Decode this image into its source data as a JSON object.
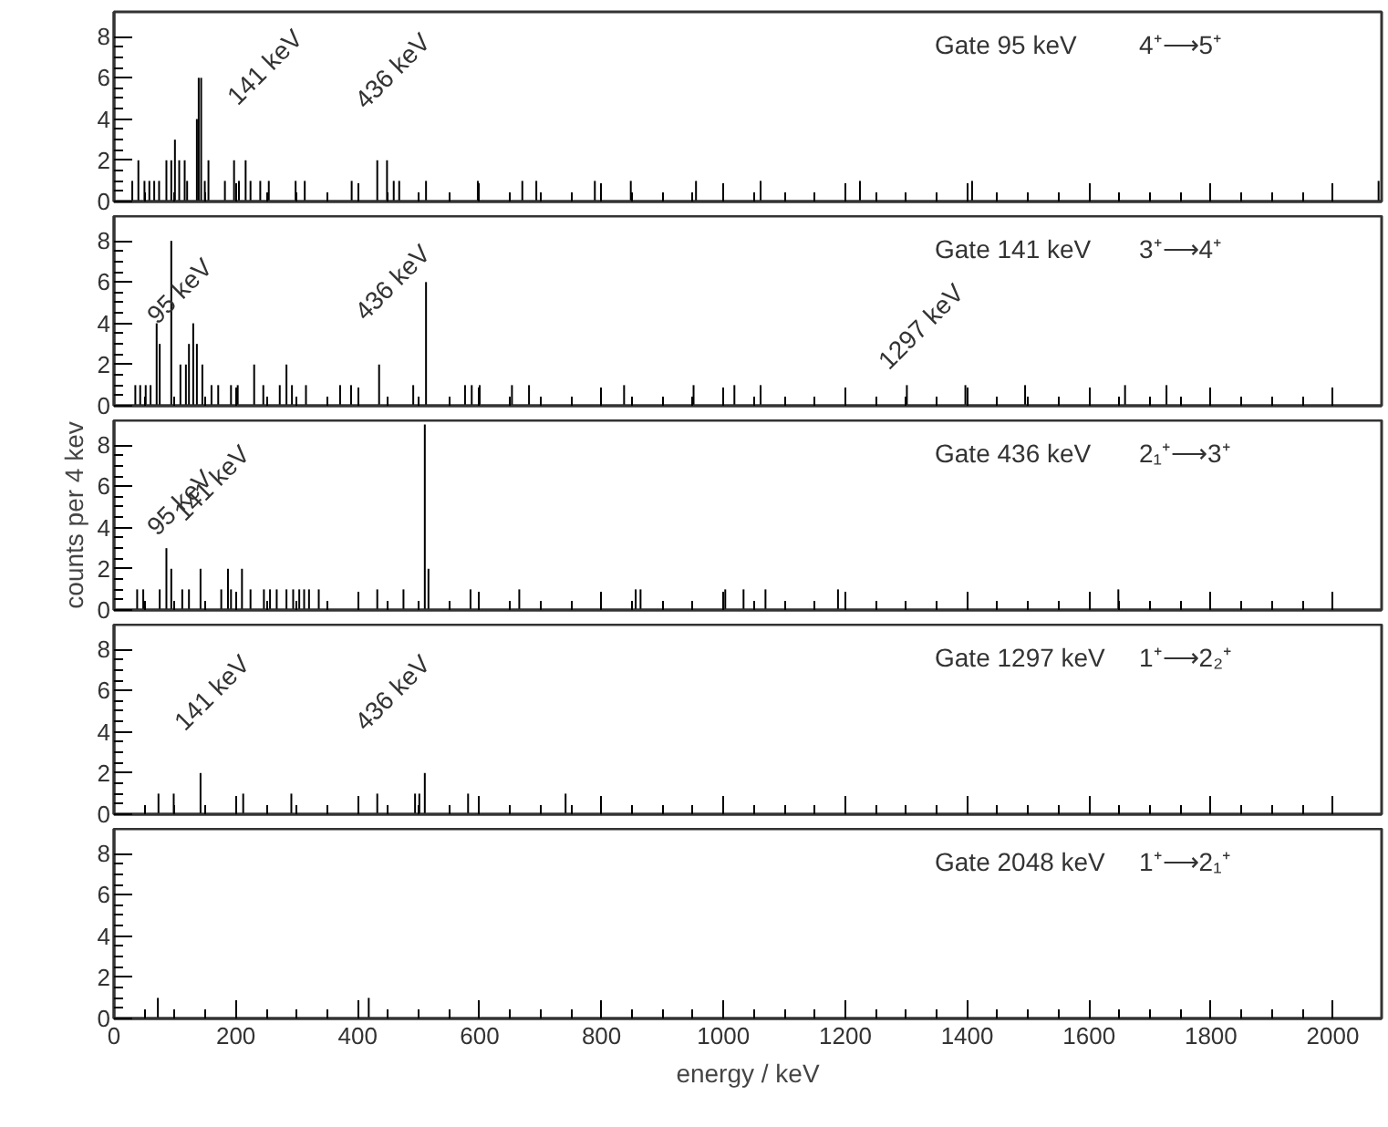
{
  "chart_data": [
    {
      "type": "bar",
      "title": "Gate 95 keV",
      "subtitle": "4⁺⟶5⁺",
      "color": "#000000",
      "xlim": [
        0,
        2080
      ],
      "ylim": [
        0,
        9.2
      ],
      "xticks": [
        0,
        200,
        400,
        600,
        800,
        1000,
        1200,
        1400,
        1600,
        1800,
        2000
      ],
      "yticks": [
        0,
        2,
        4,
        6,
        8
      ],
      "tick_labels": "y",
      "x": [
        30,
        40,
        50,
        58,
        66,
        74,
        86,
        94,
        100,
        107,
        116,
        120,
        136,
        139,
        143,
        149,
        155,
        182,
        197,
        205,
        216,
        224,
        240,
        254,
        298,
        313,
        390,
        432,
        448,
        459,
        468,
        512,
        597,
        670,
        693,
        789,
        848,
        955,
        1061,
        1224,
        1408,
        2075
      ],
      "values": [
        1,
        2,
        1,
        1,
        1,
        1,
        2,
        2,
        3,
        2,
        2,
        1,
        4,
        6,
        6,
        1,
        2,
        1,
        2,
        1,
        2,
        1,
        1,
        1,
        1,
        1,
        1,
        2,
        2,
        1,
        1,
        1,
        1,
        1,
        1,
        1,
        1,
        1,
        1,
        1,
        1,
        1
      ],
      "annotations": [
        "141 keV",
        "436 keV"
      ]
    },
    {
      "type": "bar",
      "title": "Gate 141 keV",
      "subtitle": "3⁺⟶4⁺",
      "color": "#000000",
      "xlim": [
        0,
        2080
      ],
      "ylim": [
        0,
        9.2
      ],
      "xticks": [
        0,
        200,
        400,
        600,
        800,
        1000,
        1200,
        1400,
        1600,
        1800,
        2000
      ],
      "yticks": [
        0,
        2,
        4,
        6,
        8
      ],
      "tick_labels": "y",
      "x": [
        35,
        43,
        52,
        60,
        70,
        75,
        94,
        109,
        118,
        123,
        130,
        136,
        145,
        160,
        171,
        192,
        203,
        230,
        245,
        272,
        283,
        292,
        315,
        371,
        389,
        435,
        491,
        512,
        576,
        587,
        600,
        653,
        681,
        837,
        951,
        1018,
        1061,
        1301,
        1397,
        1495,
        1659,
        1727
      ],
      "values": [
        1,
        1,
        1,
        1,
        4,
        3,
        8,
        2,
        2,
        3,
        4,
        3,
        2,
        1,
        1,
        1,
        1,
        2,
        1,
        1,
        2,
        1,
        1,
        1,
        1,
        2,
        1,
        6,
        1,
        1,
        1,
        1,
        1,
        1,
        1,
        1,
        1,
        1,
        1,
        1,
        1,
        1
      ],
      "annotations": [
        "95 keV",
        "436 keV",
        "1297 keV"
      ]
    },
    {
      "type": "bar",
      "title": "Gate 436 keV",
      "subtitle": "2₁⁺⟶3⁺",
      "color": "#000000",
      "xlim": [
        0,
        2080
      ],
      "ylim": [
        0,
        9.2
      ],
      "xticks": [
        0,
        200,
        400,
        600,
        800,
        1000,
        1200,
        1400,
        1600,
        1800,
        2000
      ],
      "yticks": [
        0,
        2,
        4,
        6,
        8
      ],
      "tick_labels": "y",
      "ylabel": "counts per 4 kev",
      "x": [
        38,
        48,
        75,
        86,
        94,
        112,
        123,
        142,
        176,
        187,
        192,
        210,
        224,
        246,
        256,
        267,
        283,
        294,
        304,
        312,
        320,
        336,
        432,
        475,
        510,
        516,
        585,
        665,
        856,
        864,
        1003,
        1033,
        1069,
        1188,
        1648
      ],
      "values": [
        1,
        1,
        1,
        3,
        2,
        1,
        1,
        2,
        1,
        2,
        1,
        2,
        1,
        1,
        1,
        1,
        1,
        1,
        1,
        1,
        1,
        1,
        1,
        1,
        9,
        2,
        1,
        1,
        1,
        1,
        1,
        1,
        1,
        1,
        1
      ],
      "annotations": [
        "95 keV",
        "141 keV"
      ]
    },
    {
      "type": "bar",
      "title": "Gate 1297 keV",
      "subtitle": "1⁺⟶2₂⁺",
      "color": "#000000",
      "xlim": [
        0,
        2080
      ],
      "ylim": [
        0,
        9.2
      ],
      "xticks": [
        0,
        200,
        400,
        600,
        800,
        1000,
        1200,
        1400,
        1600,
        1800,
        2000
      ],
      "yticks": [
        0,
        2,
        4,
        6,
        8
      ],
      "tick_labels": "y",
      "x": [
        73,
        98,
        142,
        212,
        291,
        432,
        494,
        501,
        510,
        581,
        741
      ],
      "values": [
        1,
        1,
        2,
        1,
        1,
        1,
        1,
        1,
        2,
        1,
        1
      ],
      "annotations": [
        "141 keV",
        "436 keV"
      ]
    },
    {
      "type": "bar",
      "title": "Gate 2048 keV",
      "subtitle": "1⁺⟶2₁⁺",
      "color": "#000000",
      "xlim": [
        0,
        2080
      ],
      "ylim": [
        0,
        9.2
      ],
      "xticks": [
        0,
        200,
        400,
        600,
        800,
        1000,
        1200,
        1400,
        1600,
        1800,
        2000
      ],
      "yticks": [
        0,
        2,
        4,
        6,
        8
      ],
      "xlabel": "energy / keV",
      "x": [
        72,
        418
      ],
      "values": [
        1,
        1
      ]
    }
  ]
}
